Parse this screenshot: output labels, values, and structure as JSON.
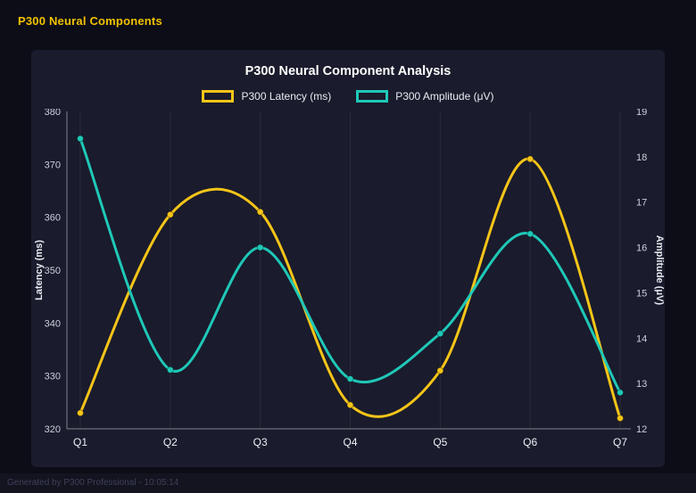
{
  "page": {
    "header": "P300 Neural Components",
    "footer": "Generated by P300 Professional - 10:05:14"
  },
  "colors": {
    "background": "#0c0d17",
    "panel": "#1a1b2c",
    "header_text": "#f2c200",
    "latency_line": "#f5c518",
    "amplitude_line": "#1fc8b8"
  },
  "chart_data": {
    "type": "line",
    "title": "P300 Neural Component Analysis",
    "categories": [
      "Q1",
      "Q2",
      "Q3",
      "Q4",
      "Q5",
      "Q6",
      "Q7"
    ],
    "series": [
      {
        "name": "P300 Latency (ms)",
        "axis": "left",
        "color": "#f5c518",
        "values": [
          323,
          360.5,
          361,
          324.5,
          331,
          371,
          322
        ]
      },
      {
        "name": "P300 Amplitude (μV)",
        "axis": "right",
        "color": "#1fc8b8",
        "values": [
          18.4,
          13.3,
          16.0,
          13.1,
          14.1,
          16.3,
          12.8
        ]
      }
    ],
    "left_axis": {
      "label": "Latency (ms)",
      "min": 320,
      "max": 380,
      "step": 10
    },
    "right_axis": {
      "label": "Amplitude (μV)",
      "min": 12,
      "max": 19,
      "step": 1
    },
    "legend_position": "top",
    "grid": "vertical",
    "line_tension": 0.4
  }
}
